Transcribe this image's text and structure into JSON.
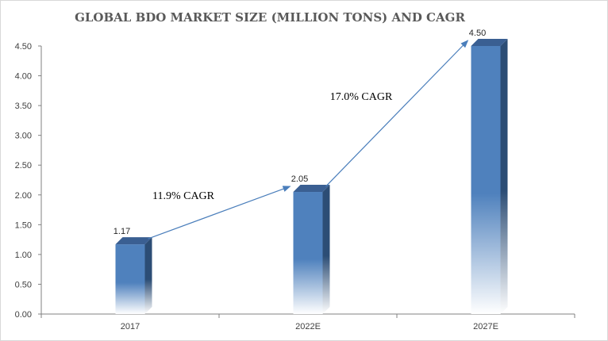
{
  "chart_data": {
    "type": "bar",
    "title": "GLOBAL BDO MARKET SIZE  (MILLION TONS) AND CAGR",
    "categories": [
      "2017",
      "2022E",
      "2027E"
    ],
    "values": [
      1.17,
      2.05,
      4.5
    ],
    "value_labels": [
      "1.17",
      "2.05",
      "4.50"
    ],
    "ylim": [
      0,
      4.5
    ],
    "yticks": [
      "0.00",
      "0.50",
      "1.00",
      "1.50",
      "2.00",
      "2.50",
      "3.00",
      "3.50",
      "4.00",
      "4.50"
    ],
    "xlabel": "",
    "ylabel": "",
    "grid": false,
    "legend": "none",
    "annotations": [
      {
        "text": "11.9% CAGR",
        "from": "2017",
        "to": "2022E"
      },
      {
        "text": "17.0% CAGR",
        "from": "2022E",
        "to": "2027E"
      }
    ],
    "colors": {
      "bar_front": "#4f81bd",
      "bar_side": "#2c4d75",
      "bar_top": "#3a5f92",
      "arrow": "#4a7ebb",
      "axis": "#808080"
    }
  }
}
